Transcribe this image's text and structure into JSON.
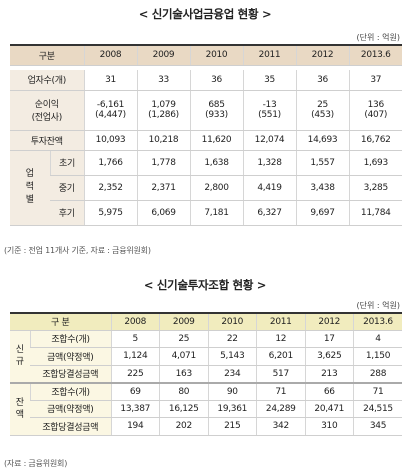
{
  "table1": {
    "title": "< 신기술사업금융업 현황 >",
    "unit": "(단위 : 억원)",
    "headers": [
      "구분",
      "2008",
      "2009",
      "2010",
      "2011",
      "2012",
      "2013.6"
    ],
    "rows": {
      "companies": {
        "label": "업자수(개)",
        "values": [
          "31",
          "33",
          "36",
          "35",
          "36",
          "37"
        ]
      },
      "net_income": {
        "label": "순이익",
        "label2": "(전업사)",
        "values": [
          "-6,161",
          "1,079",
          "685",
          "-13",
          "25",
          "136"
        ],
        "values2": [
          "(4,447)",
          "(1,286)",
          "(933)",
          "(551)",
          "(453)",
          "(407)"
        ]
      },
      "investment": {
        "label": "투자잔액",
        "values": [
          "10,093",
          "10,218",
          "11,620",
          "12,074",
          "14,693",
          "16,762"
        ]
      }
    },
    "stage_group": {
      "label_chars": [
        "업",
        "력",
        "별"
      ]
    },
    "stages": [
      {
        "label": "초기",
        "values": [
          "1,766",
          "1,778",
          "1,638",
          "1,328",
          "1,557",
          "1,693"
        ]
      },
      {
        "label": "중기",
        "values": [
          "2,352",
          "2,371",
          "2,800",
          "4,419",
          "3,438",
          "3,285"
        ]
      },
      {
        "label": "후기",
        "values": [
          "5,975",
          "6,069",
          "7,181",
          "6,327",
          "9,697",
          "11,784"
        ]
      }
    ],
    "note": "(기준 : 전업 11개사 기준, 자료 : 금융위원회)"
  },
  "table2": {
    "title": "< 신기술투자조합 현황 >",
    "unit": "(단위 : 억원)",
    "headers": [
      "구  분",
      "2008",
      "2009",
      "2010",
      "2011",
      "2012",
      "2013.6"
    ],
    "new_group": {
      "label_chars": [
        "신",
        "규"
      ]
    },
    "new_rows": [
      {
        "label": "조합수(개)",
        "values": [
          "5",
          "25",
          "22",
          "12",
          "17",
          "4"
        ]
      },
      {
        "label": "금액(약정액)",
        "values": [
          "1,124",
          "4,071",
          "5,143",
          "6,201",
          "3,625",
          "1,150"
        ]
      },
      {
        "label": "조합당결성금액",
        "values": [
          "225",
          "163",
          "234",
          "517",
          "213",
          "288"
        ]
      }
    ],
    "bal_group": {
      "label_chars": [
        "잔",
        "액"
      ]
    },
    "bal_rows": [
      {
        "label": "조합수(개)",
        "values": [
          "69",
          "80",
          "90",
          "71",
          "66",
          "71"
        ]
      },
      {
        "label": "금액(약정액)",
        "values": [
          "13,387",
          "16,125",
          "19,361",
          "24,289",
          "20,471",
          "24,515"
        ]
      },
      {
        "label": "조합당결성금액",
        "values": [
          "194",
          "202",
          "215",
          "342",
          "310",
          "345"
        ]
      }
    ],
    "note": "(자료 : 금융위원회)"
  }
}
